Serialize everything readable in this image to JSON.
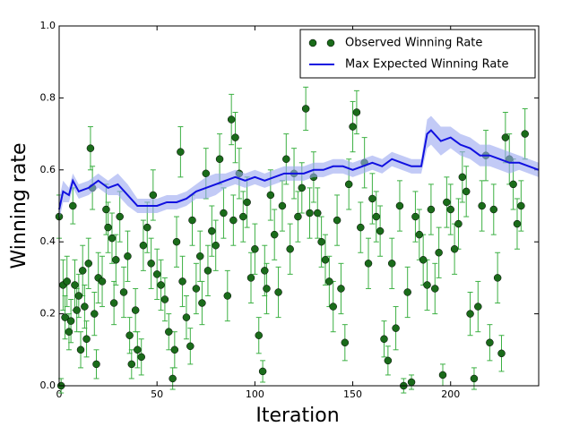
{
  "chart_data": {
    "type": "scatter",
    "xlabel": "Iteration",
    "ylabel": "Winning rate",
    "xlim": [
      0,
      245
    ],
    "ylim": [
      0,
      1
    ],
    "xticks": [
      0,
      50,
      100,
      150,
      200
    ],
    "yticks": [
      {
        "value": 0,
        "label": "0.0"
      },
      {
        "value": 0.2,
        "label": "0.2"
      },
      {
        "value": 0.4,
        "label": "0.4"
      },
      {
        "value": 0.6,
        "label": "0.6"
      },
      {
        "value": 0.8,
        "label": "0.8"
      },
      {
        "value": 1,
        "label": "1.0"
      }
    ],
    "legend": "upper right",
    "series": [
      {
        "name": "Observed Winning Rate",
        "type": "scatter",
        "color": "#1a6b1a",
        "error_color": "#3cb043",
        "x": [
          0,
          1,
          2,
          3,
          4,
          5,
          6,
          7,
          8,
          9,
          10,
          11,
          12,
          13,
          14,
          15,
          16,
          17,
          18,
          19,
          20,
          22,
          24,
          25,
          27,
          28,
          29,
          31,
          33,
          35,
          36,
          37,
          39,
          40,
          42,
          43,
          45,
          47,
          48,
          50,
          52,
          54,
          56,
          58,
          59,
          60,
          62,
          63,
          65,
          67,
          68,
          70,
          72,
          73,
          75,
          76,
          78,
          80,
          82,
          84,
          86,
          88,
          89,
          90,
          92,
          94,
          96,
          98,
          100,
          102,
          104,
          105,
          106,
          108,
          110,
          112,
          114,
          116,
          118,
          120,
          122,
          124,
          126,
          128,
          130,
          132,
          134,
          136,
          138,
          140,
          142,
          144,
          146,
          148,
          150,
          152,
          154,
          156,
          158,
          160,
          162,
          164,
          166,
          168,
          170,
          172,
          174,
          176,
          178,
          180,
          182,
          184,
          186,
          188,
          190,
          192,
          194,
          196,
          198,
          200,
          202,
          204,
          206,
          208,
          210,
          212,
          214,
          216,
          218,
          220,
          222,
          224,
          226,
          228,
          230,
          232,
          234,
          236,
          238
        ],
        "values": [
          0.47,
          0,
          0.28,
          0.19,
          0.29,
          0.15,
          0.18,
          0.5,
          0.28,
          0.21,
          0.25,
          0.1,
          0.32,
          0.22,
          0.13,
          0.34,
          0.66,
          0.55,
          0.2,
          0.06,
          0.3,
          0.29,
          0.49,
          0.44,
          0.41,
          0.23,
          0.35,
          0.47,
          0.26,
          0.36,
          0.14,
          0.06,
          0.21,
          0.1,
          0.08,
          0.39,
          0.44,
          0.34,
          0.53,
          0.31,
          0.28,
          0.24,
          0.15,
          0.02,
          0.1,
          0.4,
          0.65,
          0.29,
          0.19,
          0.11,
          0.46,
          0.27,
          0.36,
          0.23,
          0.59,
          0.32,
          0.43,
          0.39,
          0.63,
          0.48,
          0.25,
          0.74,
          0.46,
          0.69,
          0.59,
          0.47,
          0.51,
          0.3,
          0.38,
          0.14,
          0.04,
          0.32,
          0.27,
          0.53,
          0.42,
          0.26,
          0.5,
          0.63,
          0.38,
          0.59,
          0.47,
          0.55,
          0.77,
          0.48,
          0.58,
          0.48,
          0.4,
          0.35,
          0.29,
          0.22,
          0.46,
          0.27,
          0.12,
          0.56,
          0.72,
          0.76,
          0.44,
          0.62,
          0.34,
          0.52,
          0.47,
          0.43,
          0.13,
          0.07,
          0.34,
          0.16,
          0.5,
          0,
          0.26,
          0.01,
          0.47,
          0.42,
          0.35,
          0.28,
          0.49,
          0.27,
          0.37,
          0.03,
          0.51,
          0.49,
          0.38,
          0.45,
          0.58,
          0.54,
          0.2,
          0.02,
          0.22,
          0.5,
          0.64,
          0.12,
          0.49,
          0.3,
          0.09,
          0.69,
          0.63,
          0.56,
          0.45,
          0.5,
          0.7
        ],
        "errors": [
          0.06,
          0.02,
          0.07,
          0.06,
          0.07,
          0.05,
          0.06,
          0.05,
          0.07,
          0.06,
          0.06,
          0.05,
          0.07,
          0.06,
          0.05,
          0.07,
          0.06,
          0.06,
          0.06,
          0.04,
          0.07,
          0.07,
          0.07,
          0.07,
          0.07,
          0.06,
          0.07,
          0.07,
          0.07,
          0.07,
          0.05,
          0.04,
          0.06,
          0.05,
          0.05,
          0.07,
          0.07,
          0.07,
          0.07,
          0.07,
          0.07,
          0.06,
          0.05,
          0.03,
          0.05,
          0.07,
          0.07,
          0.07,
          0.06,
          0.05,
          0.07,
          0.07,
          0.07,
          0.06,
          0.07,
          0.07,
          0.07,
          0.07,
          0.07,
          0.07,
          0.07,
          0.07,
          0.07,
          0.07,
          0.07,
          0.07,
          0.07,
          0.07,
          0.07,
          0.05,
          0.03,
          0.07,
          0.07,
          0.07,
          0.07,
          0.07,
          0.07,
          0.07,
          0.07,
          0.07,
          0.07,
          0.07,
          0.06,
          0.07,
          0.07,
          0.07,
          0.07,
          0.07,
          0.07,
          0.07,
          0.07,
          0.07,
          0.05,
          0.07,
          0.07,
          0.06,
          0.07,
          0.07,
          0.07,
          0.07,
          0.07,
          0.07,
          0.05,
          0.04,
          0.07,
          0.06,
          0.07,
          0.02,
          0.07,
          0.02,
          0.07,
          0.07,
          0.07,
          0.07,
          0.07,
          0.07,
          0.07,
          0.03,
          0.07,
          0.07,
          0.07,
          0.07,
          0.07,
          0.07,
          0.06,
          0.03,
          0.07,
          0.07,
          0.07,
          0.05,
          0.07,
          0.07,
          0.05,
          0.07,
          0.07,
          0.07,
          0.07,
          0.07,
          0.07
        ]
      },
      {
        "name": "Max Expected Winning Rate",
        "type": "line",
        "color": "#1010e0",
        "band_color": "#9aa6f0",
        "x": [
          0,
          2,
          5,
          7,
          10,
          15,
          20,
          25,
          30,
          35,
          40,
          45,
          50,
          55,
          60,
          65,
          70,
          75,
          80,
          85,
          90,
          95,
          100,
          105,
          110,
          115,
          120,
          125,
          130,
          135,
          140,
          145,
          150,
          155,
          160,
          165,
          170,
          175,
          180,
          185,
          188,
          190,
          195,
          200,
          205,
          210,
          215,
          220,
          225,
          230,
          235,
          240,
          245
        ],
        "values": [
          0.49,
          0.54,
          0.53,
          0.57,
          0.54,
          0.55,
          0.57,
          0.55,
          0.56,
          0.53,
          0.5,
          0.5,
          0.5,
          0.51,
          0.51,
          0.52,
          0.54,
          0.55,
          0.56,
          0.57,
          0.58,
          0.57,
          0.58,
          0.57,
          0.58,
          0.59,
          0.59,
          0.59,
          0.6,
          0.6,
          0.61,
          0.61,
          0.6,
          0.61,
          0.62,
          0.61,
          0.63,
          0.62,
          0.61,
          0.61,
          0.7,
          0.71,
          0.68,
          0.69,
          0.67,
          0.66,
          0.64,
          0.64,
          0.63,
          0.62,
          0.62,
          0.61,
          0.6
        ],
        "errors": [
          0.03,
          0.03,
          0.02,
          0.02,
          0.02,
          0.02,
          0.02,
          0.02,
          0.03,
          0.03,
          0.02,
          0.02,
          0.02,
          0.02,
          0.02,
          0.02,
          0.02,
          0.03,
          0.03,
          0.02,
          0.02,
          0.02,
          0.02,
          0.02,
          0.02,
          0.02,
          0.02,
          0.02,
          0.02,
          0.02,
          0.02,
          0.02,
          0.02,
          0.02,
          0.02,
          0.02,
          0.02,
          0.02,
          0.02,
          0.02,
          0.04,
          0.04,
          0.04,
          0.03,
          0.03,
          0.03,
          0.03,
          0.03,
          0.03,
          0.03,
          0.02,
          0.02,
          0.02
        ]
      }
    ]
  }
}
